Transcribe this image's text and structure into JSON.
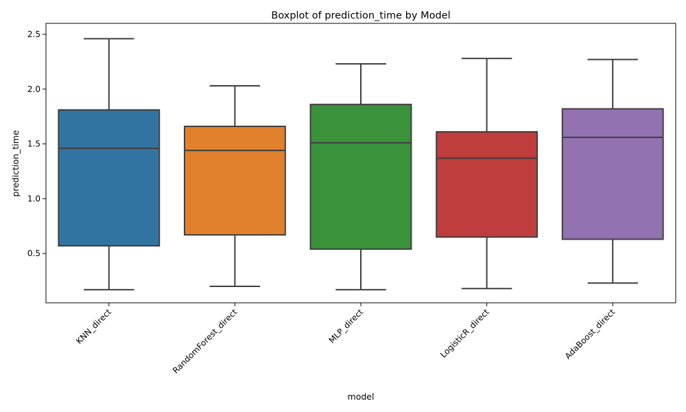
{
  "chart_data": {
    "type": "box",
    "title": "Boxplot of prediction_time by Model",
    "xlabel": "model",
    "ylabel": "prediction_time",
    "ylim": [
      0.05,
      2.6
    ],
    "yticks": [
      0.5,
      1.0,
      1.5,
      2.0,
      2.5
    ],
    "ytick_labels": [
      "0.5",
      "1.0",
      "1.5",
      "2.0",
      "2.5"
    ],
    "grid": false,
    "categories": [
      "KNN_direct",
      "RandomForest_direct",
      "MLP_direct",
      "LogisticR_direct",
      "AdaBoost_direct"
    ],
    "boxes": [
      {
        "name": "KNN_direct",
        "whisker_low": 0.17,
        "q1": 0.57,
        "median": 1.46,
        "q3": 1.81,
        "whisker_high": 2.46,
        "color": "#3274a1"
      },
      {
        "name": "RandomForest_direct",
        "whisker_low": 0.2,
        "q1": 0.67,
        "median": 1.44,
        "q3": 1.66,
        "whisker_high": 2.03,
        "color": "#e1812c"
      },
      {
        "name": "MLP_direct",
        "whisker_low": 0.17,
        "q1": 0.54,
        "median": 1.51,
        "q3": 1.86,
        "whisker_high": 2.23,
        "color": "#3a923a"
      },
      {
        "name": "LogisticR_direct",
        "whisker_low": 0.18,
        "q1": 0.65,
        "median": 1.37,
        "q3": 1.61,
        "whisker_high": 2.28,
        "color": "#c03d3e"
      },
      {
        "name": "AdaBoost_direct",
        "whisker_low": 0.23,
        "q1": 0.63,
        "median": 1.56,
        "q3": 1.82,
        "whisker_high": 2.27,
        "color": "#9372b2"
      }
    ],
    "line_color": "#3f3f3f"
  }
}
